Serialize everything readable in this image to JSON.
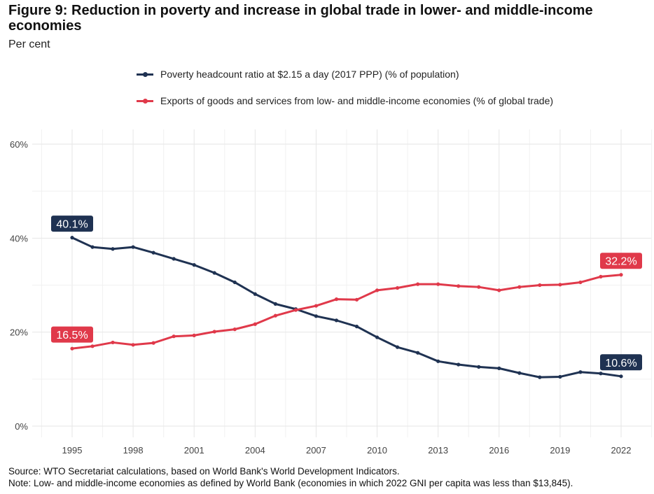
{
  "title": "Figure 9: Reduction in poverty and increase in global trade in lower- and middle-income economies",
  "subtitle": "Per cent",
  "source": "Source: WTO Secretariat calculations, based on World Bank's World Development Indicators.",
  "note": "Note: Low- and middle-income economies as defined by World Bank (economies in which 2022 GNI per capita was less than $13,845).",
  "chart_data": {
    "type": "line",
    "x": [
      1995,
      1996,
      1997,
      1998,
      1999,
      2000,
      2001,
      2002,
      2003,
      2004,
      2005,
      2006,
      2007,
      2008,
      2009,
      2010,
      2011,
      2012,
      2013,
      2014,
      2015,
      2016,
      2017,
      2018,
      2019,
      2020,
      2021,
      2022
    ],
    "xticks": [
      "1995",
      "1998",
      "2001",
      "2004",
      "2007",
      "2010",
      "2013",
      "2016",
      "2019",
      "2022"
    ],
    "ylim": [
      0,
      60
    ],
    "yticks": [
      "0%",
      "20%",
      "40%",
      "60%"
    ],
    "grid": true,
    "legend_position": "top",
    "series": [
      {
        "name": "Poverty headcount ratio at $2.15 a day (2017 PPP) (% of population)",
        "color": "#1f3252",
        "values": [
          40.1,
          38.1,
          37.7,
          38.1,
          36.9,
          35.6,
          34.3,
          32.6,
          30.6,
          28.1,
          26.0,
          24.9,
          23.4,
          22.5,
          21.2,
          18.9,
          16.8,
          15.6,
          13.8,
          13.1,
          12.6,
          12.3,
          11.3,
          10.4,
          10.5,
          11.5,
          11.2,
          10.6
        ],
        "start_label": "40.1%",
        "end_label": "10.6%"
      },
      {
        "name": "Exports of goods and services from low- and middle-income economies (% of global trade)",
        "color": "#e0394a",
        "values": [
          16.5,
          17.0,
          17.8,
          17.3,
          17.7,
          19.1,
          19.3,
          20.1,
          20.6,
          21.7,
          23.5,
          24.7,
          25.6,
          27.0,
          26.9,
          28.9,
          29.4,
          30.2,
          30.2,
          29.8,
          29.6,
          28.9,
          29.6,
          30.0,
          30.1,
          30.6,
          31.8,
          32.2
        ],
        "start_label": "16.5%",
        "end_label": "32.2%"
      }
    ]
  }
}
